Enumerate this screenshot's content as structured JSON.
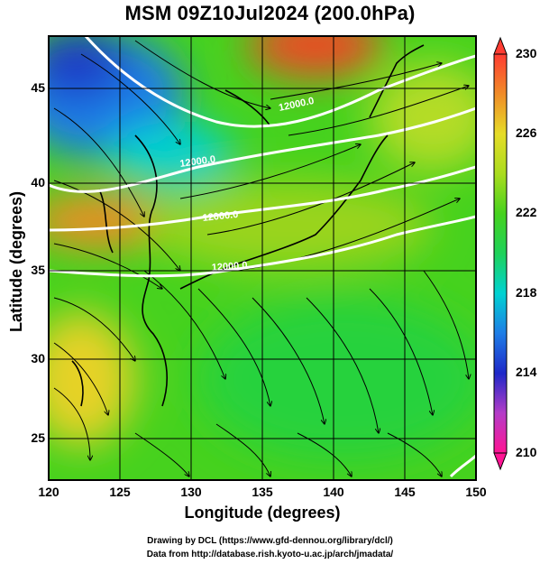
{
  "title": "MSM 09Z10Jul2024 (200.0hPa)",
  "axes": {
    "xlabel": "Longitude (degrees)",
    "ylabel": "Latitude  (degrees)",
    "xticks": [
      "120",
      "125",
      "130",
      "135",
      "140",
      "145",
      "150"
    ],
    "yticks": [
      "45",
      "40",
      "35",
      "30",
      "25"
    ],
    "xlim": [
      120,
      150
    ],
    "ylim": [
      22.4,
      47.6
    ],
    "grid": true
  },
  "colorbar": {
    "ticks": [
      "230",
      "226",
      "222",
      "218",
      "214",
      "210"
    ],
    "range": [
      210,
      230
    ],
    "colors": {
      "min": "#ff1493",
      "c212": "#b43cc8",
      "c214": "#1e28c8",
      "c216": "#1e7de6",
      "c218": "#00d2d2",
      "c220": "#1ed25a",
      "c222": "#46d21e",
      "c224": "#aadc1e",
      "c226": "#e6dc28",
      "c228": "#f08c28",
      "max": "#ff3c32"
    }
  },
  "contours": {
    "label": "12000.0",
    "labels_visible": [
      "12000.0",
      "12000.0",
      "12000.0",
      "12000.0"
    ],
    "color": "#ffffff"
  },
  "credits": {
    "line1": "Drawing by DCL (https://www.gfd-dennou.org/library/dcl/)",
    "line2": "Data from http://database.rish.kyoto-u.ac.jp/arch/jmadata/"
  },
  "chart_data": {
    "type": "heatmap",
    "title": "MSM 09Z10Jul2024 (200.0hPa)",
    "xlabel": "Longitude (degrees)",
    "ylabel": "Latitude  (degrees)",
    "variable_range": [
      210,
      230
    ],
    "regions": [
      {
        "lon": [
          120,
          128
        ],
        "lat": [
          42,
          47.6
        ],
        "value": 217
      },
      {
        "lon": [
          126,
          134
        ],
        "lat": [
          40,
          44
        ],
        "value": 220
      },
      {
        "lon": [
          135,
          140
        ],
        "lat": [
          45,
          47.6
        ],
        "value": 228
      },
      {
        "lon": [
          120,
          128
        ],
        "lat": [
          36,
          39
        ],
        "value": 227
      },
      {
        "lon": [
          120,
          128
        ],
        "lat": [
          27,
          32
        ],
        "value": 226
      },
      {
        "lon": [
          128,
          150
        ],
        "lat": [
          22.4,
          35
        ],
        "value": 222
      }
    ]
  }
}
